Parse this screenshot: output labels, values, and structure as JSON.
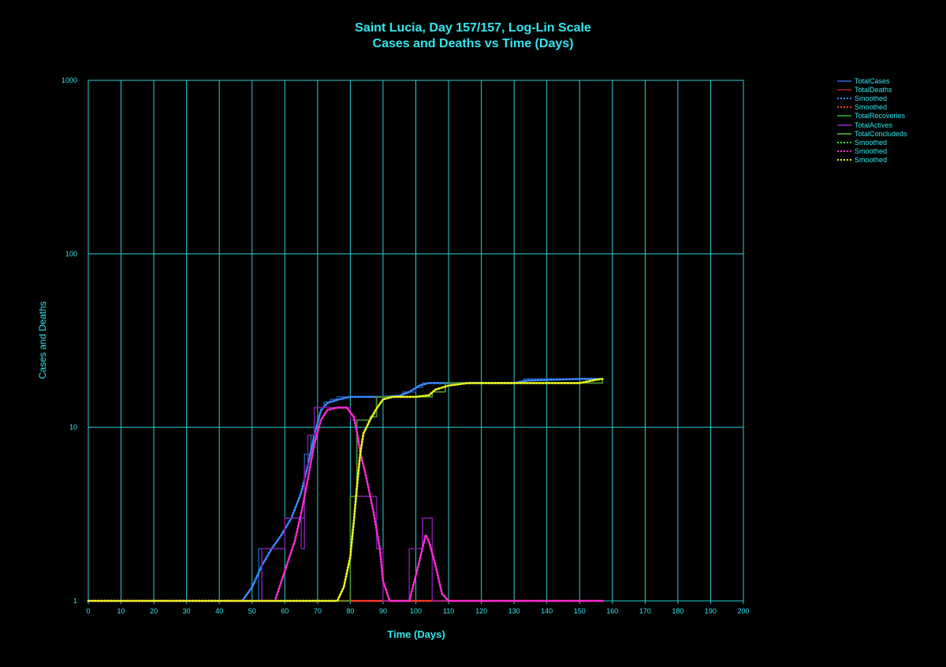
{
  "chart_data": {
    "type": "line",
    "title": "Saint Lucia, Day 157/157, Log-Lin Scale",
    "subtitle": "Cases and Deaths vs Time (Days)",
    "xlabel": "Time (Days)",
    "ylabel": "Cases and Deaths",
    "xlim": [
      0,
      200
    ],
    "ylim": [
      1,
      1000
    ],
    "yscale": "log",
    "grid": true,
    "legend_position": "top-right outside",
    "x_ticks": [
      0,
      10,
      20,
      30,
      40,
      50,
      60,
      70,
      80,
      90,
      100,
      110,
      120,
      130,
      140,
      150,
      160,
      170,
      180,
      190,
      200
    ],
    "y_ticks": [
      1,
      10,
      100,
      1000
    ],
    "series": [
      {
        "name": "TotalCases",
        "color": "#1e4fa0",
        "style": "solid",
        "points": [
          [
            0,
            1
          ],
          [
            52,
            1
          ],
          [
            52,
            2
          ],
          [
            60,
            2
          ],
          [
            60,
            3
          ],
          [
            66,
            3
          ],
          [
            66,
            7
          ],
          [
            68,
            7
          ],
          [
            68,
            9
          ],
          [
            69,
            9
          ],
          [
            69,
            13
          ],
          [
            72,
            13
          ],
          [
            72,
            14
          ],
          [
            74,
            14
          ],
          [
            74,
            14.5
          ],
          [
            76,
            14.5
          ],
          [
            76,
            15
          ],
          [
            86,
            15
          ],
          [
            86,
            15
          ],
          [
            96,
            15
          ],
          [
            96,
            16
          ],
          [
            100,
            16
          ],
          [
            100,
            17
          ],
          [
            102,
            17
          ],
          [
            102,
            18
          ],
          [
            133,
            18
          ],
          [
            133,
            19
          ],
          [
            157,
            19
          ]
        ]
      },
      {
        "name": "TotalDeaths",
        "color": "#8b1a1a",
        "style": "solid",
        "points": [
          [
            0,
            1
          ],
          [
            157,
            1
          ]
        ]
      },
      {
        "name": "Smoothed",
        "color": "#3b8cff",
        "style": "dotted",
        "points": [
          [
            0,
            1
          ],
          [
            47,
            1
          ],
          [
            50,
            1.2
          ],
          [
            53,
            1.6
          ],
          [
            56,
            2.0
          ],
          [
            59,
            2.4
          ],
          [
            62,
            3.0
          ],
          [
            65,
            4.2
          ],
          [
            67,
            6.0
          ],
          [
            69,
            9.0
          ],
          [
            71,
            12.5
          ],
          [
            73,
            13.8
          ],
          [
            76,
            14.4
          ],
          [
            80,
            15
          ],
          [
            90,
            15
          ],
          [
            95,
            15.2
          ],
          [
            98,
            16
          ],
          [
            101,
            17.4
          ],
          [
            104,
            18
          ],
          [
            130,
            18
          ],
          [
            134,
            18.6
          ],
          [
            150,
            19
          ],
          [
            157,
            19
          ]
        ]
      },
      {
        "name": "Smoothed",
        "color": "#ff3b2e",
        "style": "dotted",
        "points": [
          [
            0,
            1
          ],
          [
            157,
            1
          ]
        ]
      },
      {
        "name": "TotalRecoveries",
        "color": "#1f8a2a",
        "style": "solid",
        "points": [
          [
            0,
            1
          ],
          [
            80,
            1
          ],
          [
            80,
            4
          ],
          [
            82,
            4
          ],
          [
            82,
            11
          ],
          [
            86,
            11
          ],
          [
            86,
            11.5
          ],
          [
            88,
            11.5
          ],
          [
            88,
            15
          ],
          [
            96,
            15
          ],
          [
            96,
            15
          ],
          [
            105,
            15
          ],
          [
            105,
            16
          ],
          [
            109,
            16
          ],
          [
            109,
            18
          ],
          [
            157,
            18
          ],
          [
            157,
            19
          ]
        ]
      },
      {
        "name": "TotalActives",
        "color": "#7a1a9a",
        "style": "solid",
        "points": [
          [
            0,
            1
          ],
          [
            53,
            1
          ],
          [
            53,
            2
          ],
          [
            60,
            2
          ],
          [
            60,
            3
          ],
          [
            65,
            3
          ],
          [
            65,
            2
          ],
          [
            66,
            2
          ],
          [
            66,
            6
          ],
          [
            67,
            6
          ],
          [
            67,
            9
          ],
          [
            69,
            9
          ],
          [
            69,
            13
          ],
          [
            80,
            13
          ],
          [
            80,
            11
          ],
          [
            82,
            11
          ],
          [
            82,
            4
          ],
          [
            88,
            4
          ],
          [
            88,
            2
          ],
          [
            90,
            2
          ],
          [
            90,
            1
          ],
          [
            98,
            1
          ],
          [
            98,
            2
          ],
          [
            102,
            2
          ],
          [
            102,
            3
          ],
          [
            105,
            3
          ],
          [
            105,
            1
          ],
          [
            157,
            1
          ]
        ]
      },
      {
        "name": "TotalConcludeds",
        "color": "#4c8f2a",
        "style": "solid",
        "points": [
          [
            0,
            1
          ],
          [
            80,
            1
          ],
          [
            80,
            4
          ],
          [
            82,
            4
          ],
          [
            82,
            11
          ],
          [
            86,
            11
          ],
          [
            86,
            11.5
          ],
          [
            88,
            11.5
          ],
          [
            88,
            15
          ],
          [
            105,
            15
          ],
          [
            105,
            16
          ],
          [
            109,
            16
          ],
          [
            109,
            18
          ],
          [
            157,
            18
          ],
          [
            157,
            19
          ]
        ]
      },
      {
        "name": "Smoothed",
        "color": "#35e635",
        "style": "dotted",
        "points": [
          [
            0,
            1
          ],
          [
            76,
            1
          ],
          [
            78,
            1.2
          ],
          [
            80,
            1.8
          ],
          [
            81,
            2.8
          ],
          [
            82,
            4.5
          ],
          [
            83,
            7
          ],
          [
            84,
            9.2
          ],
          [
            86,
            11
          ],
          [
            88,
            12.8
          ],
          [
            90,
            14.5
          ],
          [
            93,
            15
          ],
          [
            100,
            15
          ],
          [
            104,
            15.3
          ],
          [
            106,
            16.5
          ],
          [
            110,
            17.4
          ],
          [
            116,
            18
          ],
          [
            150,
            18
          ],
          [
            155,
            18.8
          ],
          [
            157,
            19
          ]
        ]
      },
      {
        "name": "Smoothed",
        "color": "#ff2bd6",
        "style": "dotted",
        "points": [
          [
            0,
            1
          ],
          [
            57,
            1
          ],
          [
            59,
            1.3
          ],
          [
            61,
            1.7
          ],
          [
            63,
            2.2
          ],
          [
            65,
            3.2
          ],
          [
            67,
            5.0
          ],
          [
            69,
            8.0
          ],
          [
            71,
            11.0
          ],
          [
            73,
            12.6
          ],
          [
            76,
            13
          ],
          [
            79,
            13
          ],
          [
            81,
            11.5
          ],
          [
            82,
            9.5
          ],
          [
            83,
            7.2
          ],
          [
            85,
            5.0
          ],
          [
            87,
            3.3
          ],
          [
            89,
            2.0
          ],
          [
            90,
            1.3
          ],
          [
            92,
            1
          ],
          [
            98,
            1
          ],
          [
            100,
            1.4
          ],
          [
            102,
            2.0
          ],
          [
            103,
            2.4
          ],
          [
            104,
            2.2
          ],
          [
            106,
            1.6
          ],
          [
            108,
            1.1
          ],
          [
            110,
            1
          ],
          [
            157,
            1
          ]
        ]
      },
      {
        "name": "Smoothed",
        "color": "#f0f020",
        "style": "dotted",
        "points": [
          [
            0,
            1
          ],
          [
            76,
            1
          ],
          [
            78,
            1.2
          ],
          [
            80,
            1.8
          ],
          [
            81,
            2.8
          ],
          [
            82,
            4.5
          ],
          [
            83,
            7
          ],
          [
            84,
            9.2
          ],
          [
            86,
            11
          ],
          [
            88,
            12.8
          ],
          [
            90,
            14.5
          ],
          [
            93,
            15
          ],
          [
            100,
            15
          ],
          [
            104,
            15.3
          ],
          [
            106,
            16.5
          ],
          [
            110,
            17.4
          ],
          [
            116,
            18
          ],
          [
            150,
            18
          ],
          [
            155,
            18.8
          ],
          [
            157,
            19
          ]
        ]
      }
    ]
  }
}
